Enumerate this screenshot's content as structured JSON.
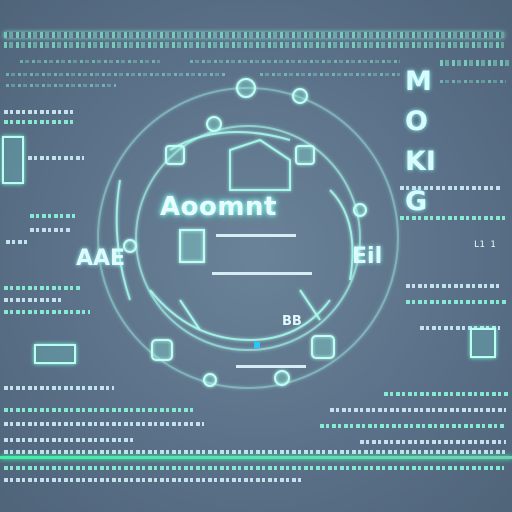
{
  "central_title": "Aoomnt",
  "side_title": "MOKIG",
  "left_word": "AAE",
  "right_word": "Eil",
  "mini_word": "BB",
  "colors": {
    "background": "#5a7088",
    "glow": "#8fffe0",
    "green_band": "#3dffb0",
    "text": "#e8fbff"
  },
  "corner_labels": {
    "right_mid": "L1 1"
  },
  "icons": [
    "gear-icon",
    "lock-icon",
    "padlock-icon",
    "circuit-icon",
    "monitor-icon",
    "cloud-icon",
    "orbit-icon"
  ]
}
